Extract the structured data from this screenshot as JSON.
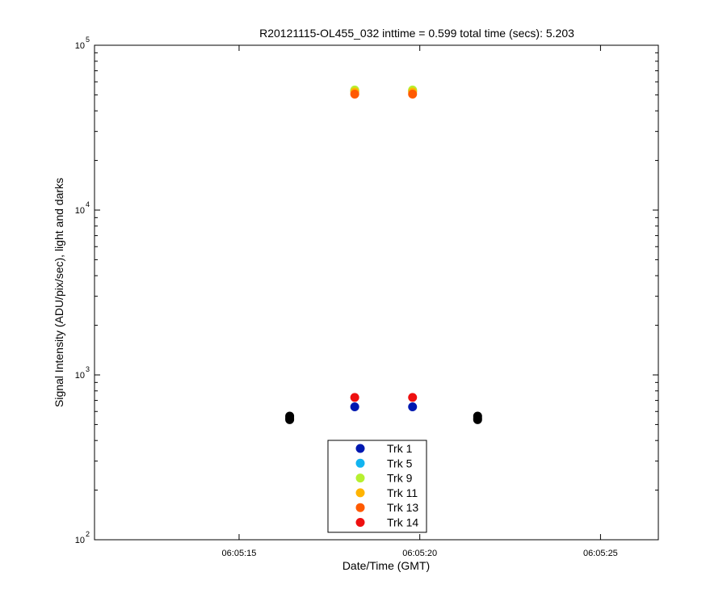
{
  "chart_data": {
    "type": "scatter",
    "title": "R20121115-OL455_032 inttime = 0.599 total time (secs): 5.203",
    "xlabel": "Date/Time (GMT)",
    "ylabel": "Signal Intensity (ADU/pix/sec), light and darks",
    "y_scale": "log",
    "ylim": [
      100,
      100000
    ],
    "xlim": [
      "06:05:11",
      "06:05:26.6"
    ],
    "x_ticks": [
      "06:05:15",
      "06:05:20",
      "06:05:25"
    ],
    "y_ticks": [
      {
        "value": 100,
        "base": "10",
        "exp": "2"
      },
      {
        "value": 1000,
        "base": "10",
        "exp": "3"
      },
      {
        "value": 10000,
        "base": "10",
        "exp": "4"
      },
      {
        "value": 100000,
        "base": "10",
        "exp": "5"
      }
    ],
    "grid": false,
    "legend_position": "bottom-center",
    "series": [
      {
        "name": "Trk 1",
        "color": "#0018b0",
        "points": [
          {
            "x": "06:05:18.2",
            "y": 640
          },
          {
            "x": "06:05:19.8",
            "y": 640
          }
        ]
      },
      {
        "name": "Trk 5",
        "color": "#12b4f0",
        "points": [
          {
            "x": "06:05:18.2",
            "y": 53000
          },
          {
            "x": "06:05:19.8",
            "y": 53000
          }
        ]
      },
      {
        "name": "Trk 9",
        "color": "#b6f030",
        "points": [
          {
            "x": "06:05:18.2",
            "y": 53500
          },
          {
            "x": "06:05:19.8",
            "y": 53500
          }
        ]
      },
      {
        "name": "Trk 11",
        "color": "#ffb400",
        "points": [
          {
            "x": "06:05:18.2",
            "y": 52000
          },
          {
            "x": "06:05:19.8",
            "y": 52000
          }
        ]
      },
      {
        "name": "Trk 13",
        "color": "#ff5a00",
        "points": [
          {
            "x": "06:05:18.2",
            "y": 50500
          },
          {
            "x": "06:05:19.8",
            "y": 50500
          }
        ]
      },
      {
        "name": "Trk 14",
        "color": "#ee1010",
        "points": [
          {
            "x": "06:05:18.2",
            "y": 730
          },
          {
            "x": "06:05:19.8",
            "y": 730
          }
        ]
      }
    ],
    "dark_points": {
      "color": "#000000",
      "points": [
        {
          "x": "06:05:16.4",
          "y": 535
        },
        {
          "x": "06:05:16.4",
          "y": 548
        },
        {
          "x": "06:05:16.4",
          "y": 562
        },
        {
          "x": "06:05:21.6",
          "y": 535
        },
        {
          "x": "06:05:21.6",
          "y": 548
        },
        {
          "x": "06:05:21.6",
          "y": 562
        }
      ]
    }
  }
}
